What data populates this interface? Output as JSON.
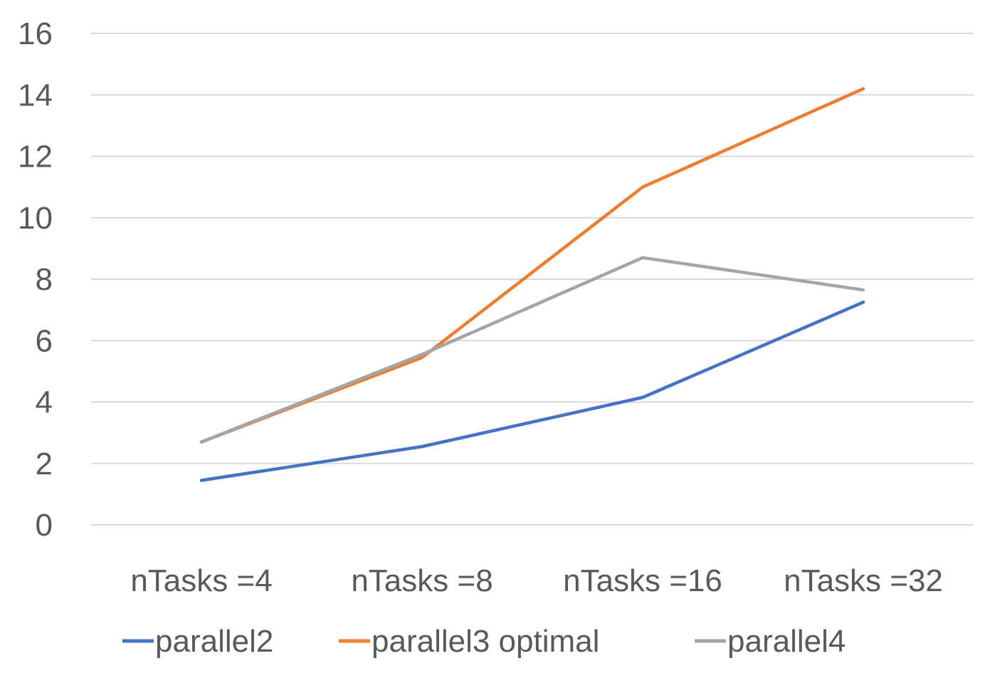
{
  "chart_data": {
    "type": "line",
    "categories": [
      "nTasks =4",
      "nTasks =8",
      "nTasks =16",
      "nTasks =32"
    ],
    "series": [
      {
        "name": "parallel2",
        "values": [
          1.45,
          2.55,
          4.15,
          7.25
        ],
        "color": "#4472C4"
      },
      {
        "name": "parallel3 optimal",
        "values": [
          2.7,
          5.45,
          11.0,
          14.2
        ],
        "color": "#ED7D31"
      },
      {
        "name": "parallel4",
        "values": [
          2.7,
          5.55,
          8.7,
          7.65
        ],
        "color": "#A5A5A5"
      }
    ],
    "title": "",
    "xlabel": "",
    "ylabel": "",
    "ylim": [
      0,
      16
    ],
    "yticks": [
      "0",
      "2",
      "4",
      "6",
      "8",
      "10",
      "12",
      "14",
      "16"
    ],
    "grid": true,
    "gridline_color": "#D9D9D9",
    "legend_position": "bottom"
  }
}
